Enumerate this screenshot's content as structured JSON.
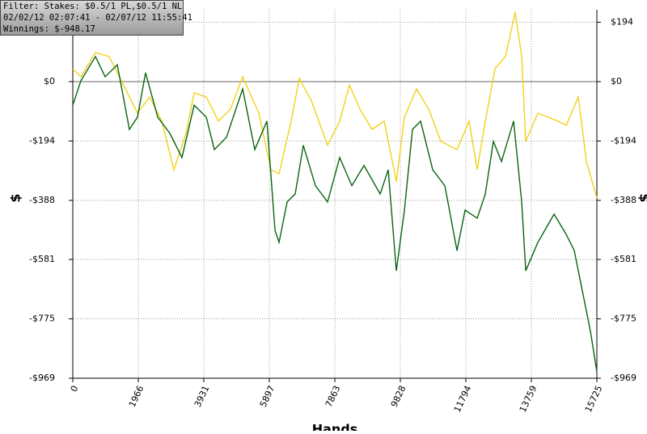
{
  "chart_data": {
    "type": "line",
    "info": [
      "Filter: Stakes: $0.5/1 PL,$0.5/1 NL",
      "02/02/12 02:07:41 - 02/07/12 11:55:41",
      "Winnings: $-948.17"
    ],
    "xlabel": "Hands",
    "ylabel": "$",
    "xlim": [
      0,
      15725
    ],
    "xticks": [
      0,
      1966,
      3931,
      5897,
      7863,
      9828,
      11794,
      13759,
      15725
    ],
    "ylim": [
      -969,
      235
    ],
    "yticks": [
      {
        "value": 194,
        "label": "$194"
      },
      {
        "value": 0,
        "label": "$0"
      },
      {
        "value": -194,
        "label": "-$194"
      },
      {
        "value": -388,
        "label": "-$388"
      },
      {
        "value": -581,
        "label": "-$581"
      },
      {
        "value": -775,
        "label": "-$775"
      },
      {
        "value": -969,
        "label": "-$969"
      }
    ],
    "grid": true,
    "series": [
      {
        "color": "#f2d21a",
        "x": [
          0,
          243,
          680,
          1092,
          1456,
          1942,
          2306,
          2670,
          3034,
          3398,
          3641,
          4005,
          4369,
          4733,
          5097,
          5582,
          5946,
          6189,
          6553,
          6796,
          7160,
          7645,
          8009,
          8300,
          8616,
          8980,
          9344,
          9708,
          9951,
          10315,
          10679,
          11043,
          11528,
          11892,
          12135,
          12378,
          12669,
          12984,
          13275,
          13470,
          13591,
          13955,
          14562,
          14805,
          15169,
          15411,
          15725
        ],
        "values": [
          42,
          16,
          95,
          82,
          3,
          -103,
          -50,
          -129,
          -288,
          -169,
          -37,
          -50,
          -129,
          -90,
          16,
          -103,
          -288,
          -301,
          -129,
          11,
          -63,
          -208,
          -129,
          -11,
          -90,
          -156,
          -129,
          -327,
          -116,
          -24,
          -90,
          -195,
          -222,
          -129,
          -288,
          -129,
          42,
          82,
          227,
          82,
          -195,
          -103,
          -129,
          -143,
          -50,
          -261,
          -380
        ]
      },
      {
        "color": "#0a6410",
        "x": [
          0,
          243,
          680,
          971,
          1335,
          1699,
          1942,
          2184,
          2548,
          2912,
          3276,
          3641,
          4005,
          4247,
          4611,
          5097,
          5461,
          5825,
          6068,
          6189,
          6432,
          6674,
          6917,
          7281,
          7645,
          8009,
          8373,
          8737,
          9223,
          9465,
          9708,
          9951,
          10193,
          10436,
          10800,
          11164,
          11528,
          11771,
          12135,
          12378,
          12620,
          12863,
          13227,
          13470,
          13591,
          13955,
          14441,
          14805,
          15047,
          15290,
          15533,
          15725
        ],
        "values": [
          -77,
          3,
          82,
          16,
          55,
          -156,
          -116,
          29,
          -116,
          -169,
          -248,
          -77,
          -116,
          -222,
          -182,
          -24,
          -222,
          -129,
          -486,
          -525,
          -393,
          -367,
          -208,
          -340,
          -393,
          -248,
          -340,
          -274,
          -367,
          -288,
          -618,
          -420,
          -156,
          -129,
          -288,
          -340,
          -552,
          -420,
          -446,
          -367,
          -195,
          -261,
          -129,
          -393,
          -618,
          -525,
          -433,
          -499,
          -552,
          -684,
          -816,
          -948
        ]
      }
    ]
  }
}
